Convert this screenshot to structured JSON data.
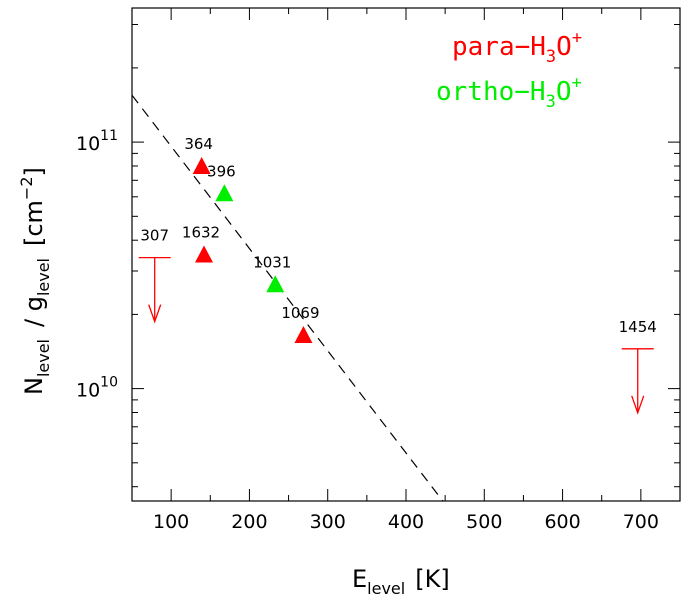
{
  "chart_data": {
    "type": "scatter",
    "xlabel": {
      "main": "E",
      "sub": "level",
      "unit": "[K]"
    },
    "ylabel": {
      "main": "N",
      "sub1": "level",
      "sep": "/ g",
      "sub2": "level",
      "unit": "[cm",
      "exp": "−2",
      "close": "]"
    },
    "x_ticks": [
      "100",
      "200",
      "300",
      "400",
      "500",
      "600",
      "700"
    ],
    "y_ticks": [
      {
        "base": "10",
        "exp": "11",
        "value": 100000000000.0
      },
      {
        "base": "10",
        "exp": "10",
        "value": 10000000000.0
      }
    ],
    "xlim": [
      50,
      750
    ],
    "ylim": [
      3500000000.0,
      350000000000.0
    ],
    "y_scale": "log",
    "legend": {
      "position": "top-right",
      "entries": [
        {
          "prefix": "para−H",
          "sub": "3",
          "mid": "O",
          "sup": "+",
          "color": "#ff0000"
        },
        {
          "prefix": "ortho−H",
          "sub": "3",
          "mid": "O",
          "sup": "+",
          "color": "#00ee00"
        }
      ]
    },
    "series": [
      {
        "name": "para−H3O+",
        "color": "#ff0000",
        "points": [
          {
            "x": 139,
            "y": 80000000000.0,
            "label": "364"
          },
          {
            "x": 142,
            "y": 35000000000.0,
            "label": "1632"
          },
          {
            "x": 269,
            "y": 16500000000.0,
            "label": "1069"
          }
        ]
      },
      {
        "name": "ortho−H3O+",
        "color": "#00ee00",
        "points": [
          {
            "x": 168,
            "y": 62000000000.0,
            "label": "396"
          },
          {
            "x": 233,
            "y": 26500000000.0,
            "label": "1031"
          }
        ]
      }
    ],
    "upper_limits": [
      {
        "x": 79,
        "y": 34000000000.0,
        "label": "307",
        "color": "#ff0000"
      },
      {
        "x": 696,
        "y": 14500000000.0,
        "label": "1454",
        "color": "#ff0000"
      }
    ],
    "fit_line": {
      "style": "dashed",
      "x0": 50,
      "y0": 155000000000.0,
      "x1": 447,
      "y1": 3500000000.0
    }
  }
}
